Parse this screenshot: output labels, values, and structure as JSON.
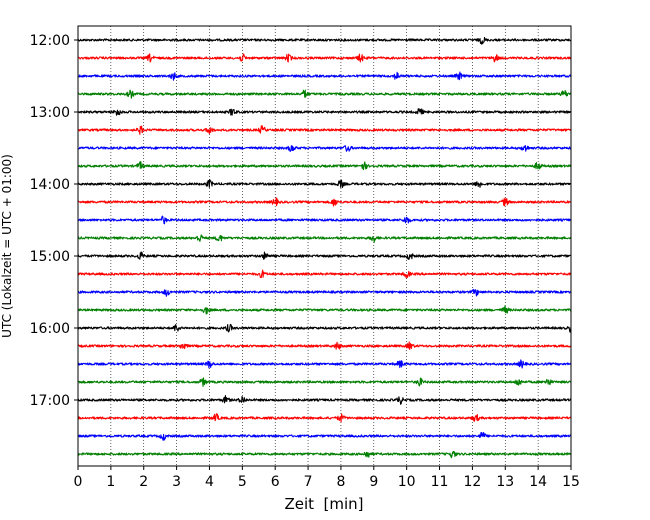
{
  "chart_data": {
    "type": "line",
    "title": "",
    "xlabel": "Zeit  [min]",
    "ylabel": "UTC (Lokalzeit = UTC + 01:00)",
    "xlim": [
      0,
      15
    ],
    "x_ticks": [
      "0",
      "1",
      "2",
      "3",
      "4",
      "5",
      "6",
      "7",
      "8",
      "9",
      "10",
      "11",
      "12",
      "13",
      "14",
      "15"
    ],
    "y_ticks": [
      {
        "label": "12:00",
        "row": 0
      },
      {
        "label": "13:00",
        "row": 4
      },
      {
        "label": "14:00",
        "row": 8
      },
      {
        "label": "15:00",
        "row": 12
      },
      {
        "label": "16:00",
        "row": 16
      },
      {
        "label": "17:00",
        "row": 20
      }
    ],
    "trace_interval_min": 15,
    "trace_count": 24,
    "trace_colors": [
      "#000000",
      "#ff0000",
      "#0000ff",
      "#007f00"
    ],
    "grid": "vertical dotted",
    "legend": "none",
    "series": [
      {
        "start": "12:00",
        "color": "#000000",
        "bursts_min": [
          12.3
        ]
      },
      {
        "start": "12:15",
        "color": "#ff0000",
        "bursts_min": [
          2.2,
          5.0,
          6.4,
          8.6,
          12.7
        ]
      },
      {
        "start": "12:30",
        "color": "#0000ff",
        "bursts_min": [
          2.9,
          9.7,
          11.6
        ]
      },
      {
        "start": "12:45",
        "color": "#007f00",
        "bursts_min": [
          1.6,
          6.9,
          14.8
        ]
      },
      {
        "start": "13:00",
        "color": "#000000",
        "bursts_min": [
          1.2,
          4.7,
          10.4
        ]
      },
      {
        "start": "13:15",
        "color": "#ff0000",
        "bursts_min": [
          1.9,
          4.0,
          5.6
        ]
      },
      {
        "start": "13:30",
        "color": "#0000ff",
        "bursts_min": [
          6.5,
          8.2,
          13.6
        ]
      },
      {
        "start": "13:45",
        "color": "#007f00",
        "bursts_min": [
          1.9,
          8.7,
          14.0
        ]
      },
      {
        "start": "14:00",
        "color": "#000000",
        "bursts_min": [
          4.0,
          8.0,
          12.2
        ]
      },
      {
        "start": "14:15",
        "color": "#ff0000",
        "bursts_min": [
          6.0,
          7.8,
          13.0
        ]
      },
      {
        "start": "14:30",
        "color": "#0000ff",
        "bursts_min": [
          2.6,
          10.0
        ]
      },
      {
        "start": "14:45",
        "color": "#007f00",
        "bursts_min": [
          3.7,
          4.3,
          9.0
        ]
      },
      {
        "start": "15:00",
        "color": "#000000",
        "bursts_min": [
          1.9,
          5.7,
          10.1
        ]
      },
      {
        "start": "15:15",
        "color": "#ff0000",
        "bursts_min": [
          5.6,
          10.0
        ]
      },
      {
        "start": "15:30",
        "color": "#0000ff",
        "bursts_min": [
          2.7,
          12.1
        ]
      },
      {
        "start": "15:45",
        "color": "#007f00",
        "bursts_min": [
          3.9,
          13.0
        ]
      },
      {
        "start": "16:00",
        "color": "#000000",
        "bursts_min": [
          3.0,
          4.6,
          15.0
        ]
      },
      {
        "start": "16:15",
        "color": "#ff0000",
        "bursts_min": [
          3.2,
          7.9,
          10.1
        ]
      },
      {
        "start": "16:30",
        "color": "#0000ff",
        "bursts_min": [
          4.0,
          9.8,
          13.5
        ]
      },
      {
        "start": "16:45",
        "color": "#007f00",
        "bursts_min": [
          3.8,
          10.4,
          13.4,
          14.3
        ]
      },
      {
        "start": "17:00",
        "color": "#000000",
        "bursts_min": [
          4.5,
          5.0,
          9.8
        ]
      },
      {
        "start": "17:15",
        "color": "#ff0000",
        "bursts_min": [
          4.2,
          8.0,
          12.1
        ]
      },
      {
        "start": "17:30",
        "color": "#0000ff",
        "bursts_min": [
          2.6,
          12.3
        ]
      },
      {
        "start": "17:45",
        "color": "#007f00",
        "bursts_min": [
          8.8,
          11.4
        ]
      }
    ]
  }
}
